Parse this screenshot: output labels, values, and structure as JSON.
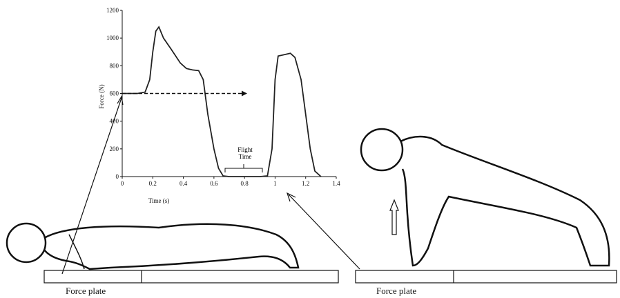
{
  "chart_data": {
    "type": "line",
    "x_label": "Time (s)",
    "y_label": "Force (N)",
    "x": [
      0,
      0.1,
      0.15,
      0.18,
      0.2,
      0.22,
      0.24,
      0.27,
      0.32,
      0.38,
      0.42,
      0.46,
      0.5,
      0.53,
      0.56,
      0.6,
      0.63,
      0.66,
      0.7,
      0.9,
      0.95,
      0.98,
      1.0,
      1.02,
      1.06,
      1.1,
      1.13,
      1.17,
      1.2,
      1.23,
      1.26,
      1.3
    ],
    "y": [
      600,
      600,
      610,
      700,
      900,
      1050,
      1080,
      1000,
      920,
      820,
      780,
      770,
      765,
      700,
      450,
      200,
      60,
      5,
      0,
      0,
      5,
      200,
      700,
      870,
      880,
      890,
      860,
      700,
      450,
      200,
      40,
      0
    ],
    "color": "#222222",
    "xlim": [
      0,
      1.4
    ],
    "xticks": [
      0,
      0.2,
      0.4,
      0.6,
      0.8,
      1,
      1.2,
      1.4
    ],
    "ylim": [
      0,
      1200
    ],
    "yticks": [
      0,
      200,
      400,
      600,
      800,
      1000,
      1200
    ],
    "annotations": [
      "Flight Time"
    ]
  },
  "labels": {
    "left_plate": "Force plate",
    "right_plate": "Force plate"
  }
}
